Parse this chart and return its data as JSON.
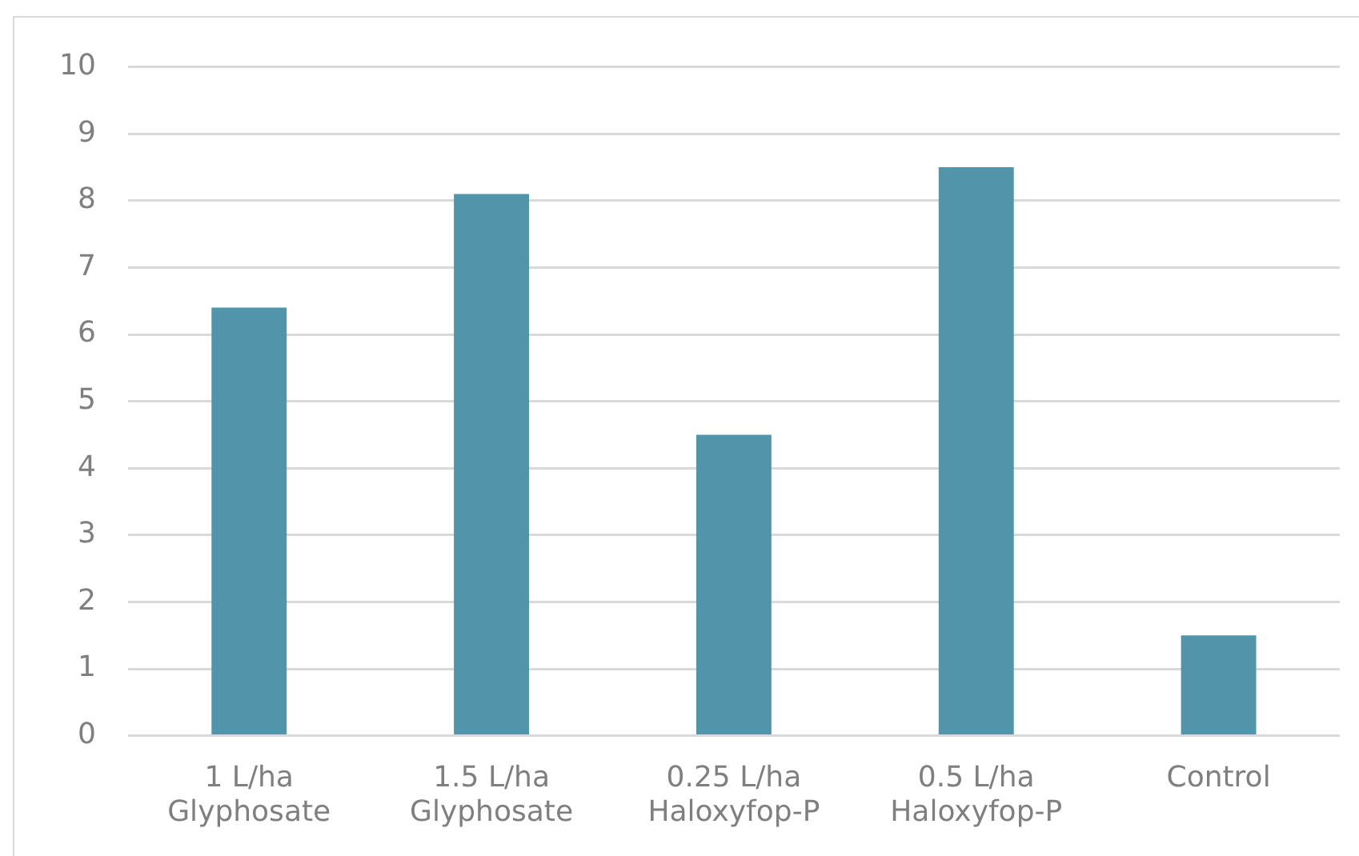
{
  "chart_data": {
    "type": "bar",
    "categories": [
      "1 L/ha\nGlyphosate",
      "1.5 L/ha\nGlyphosate",
      "0.25 L/ha\nHaloxyfop-P",
      "0.5 L/ha\nHaloxyfop-P",
      "Control"
    ],
    "values": [
      6.4,
      8.1,
      4.5,
      8.5,
      1.5
    ],
    "color": "#5294aa",
    "ylim": [
      0,
      10
    ],
    "yticks": [
      0,
      1,
      2,
      3,
      4,
      5,
      6,
      7,
      8,
      9,
      10
    ],
    "grid": "y"
  }
}
